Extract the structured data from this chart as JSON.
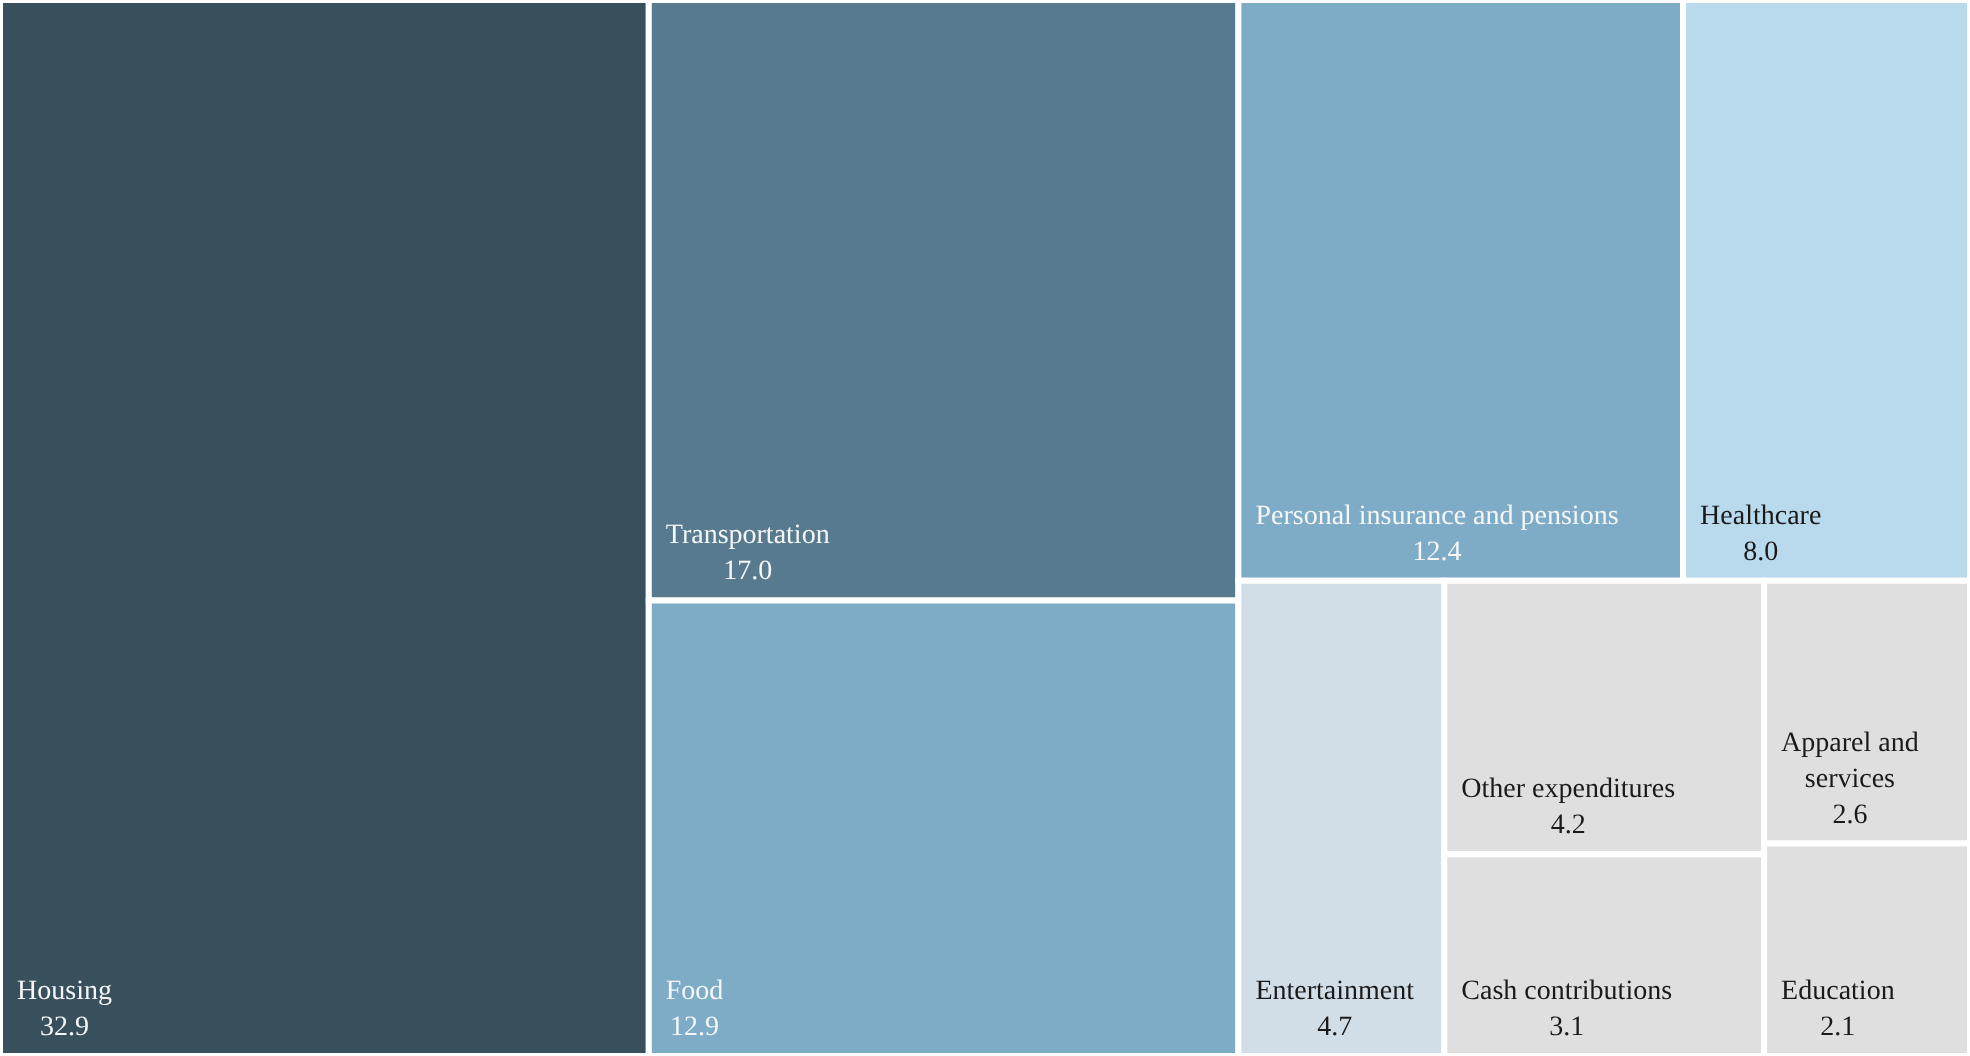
{
  "chart_data": {
    "type": "other",
    "categories": [
      "Housing",
      "Transportation",
      "Food",
      "Personal insurance and pensions",
      "Healthcare",
      "Entertainment",
      "Other expenditures",
      "Cash contributions",
      "Apparel and services",
      "Education"
    ],
    "values": [
      32.9,
      17.0,
      12.9,
      12.4,
      8.0,
      4.7,
      4.2,
      3.1,
      2.6,
      2.1
    ],
    "value_labels": [
      "32.9",
      "17.0",
      "12.9",
      "12.4",
      "8.0",
      "4.7",
      "4.2",
      "3.1",
      "2.6",
      "2.1"
    ],
    "colors": [
      "#38505c",
      "#587a8e",
      "#7eacc6",
      "#7eacc6",
      "#b9d9ed",
      "#d1dee7",
      "#dfdfdf",
      "#dfdfdf",
      "#dfdfdf",
      "#dfdfdf"
    ]
  }
}
